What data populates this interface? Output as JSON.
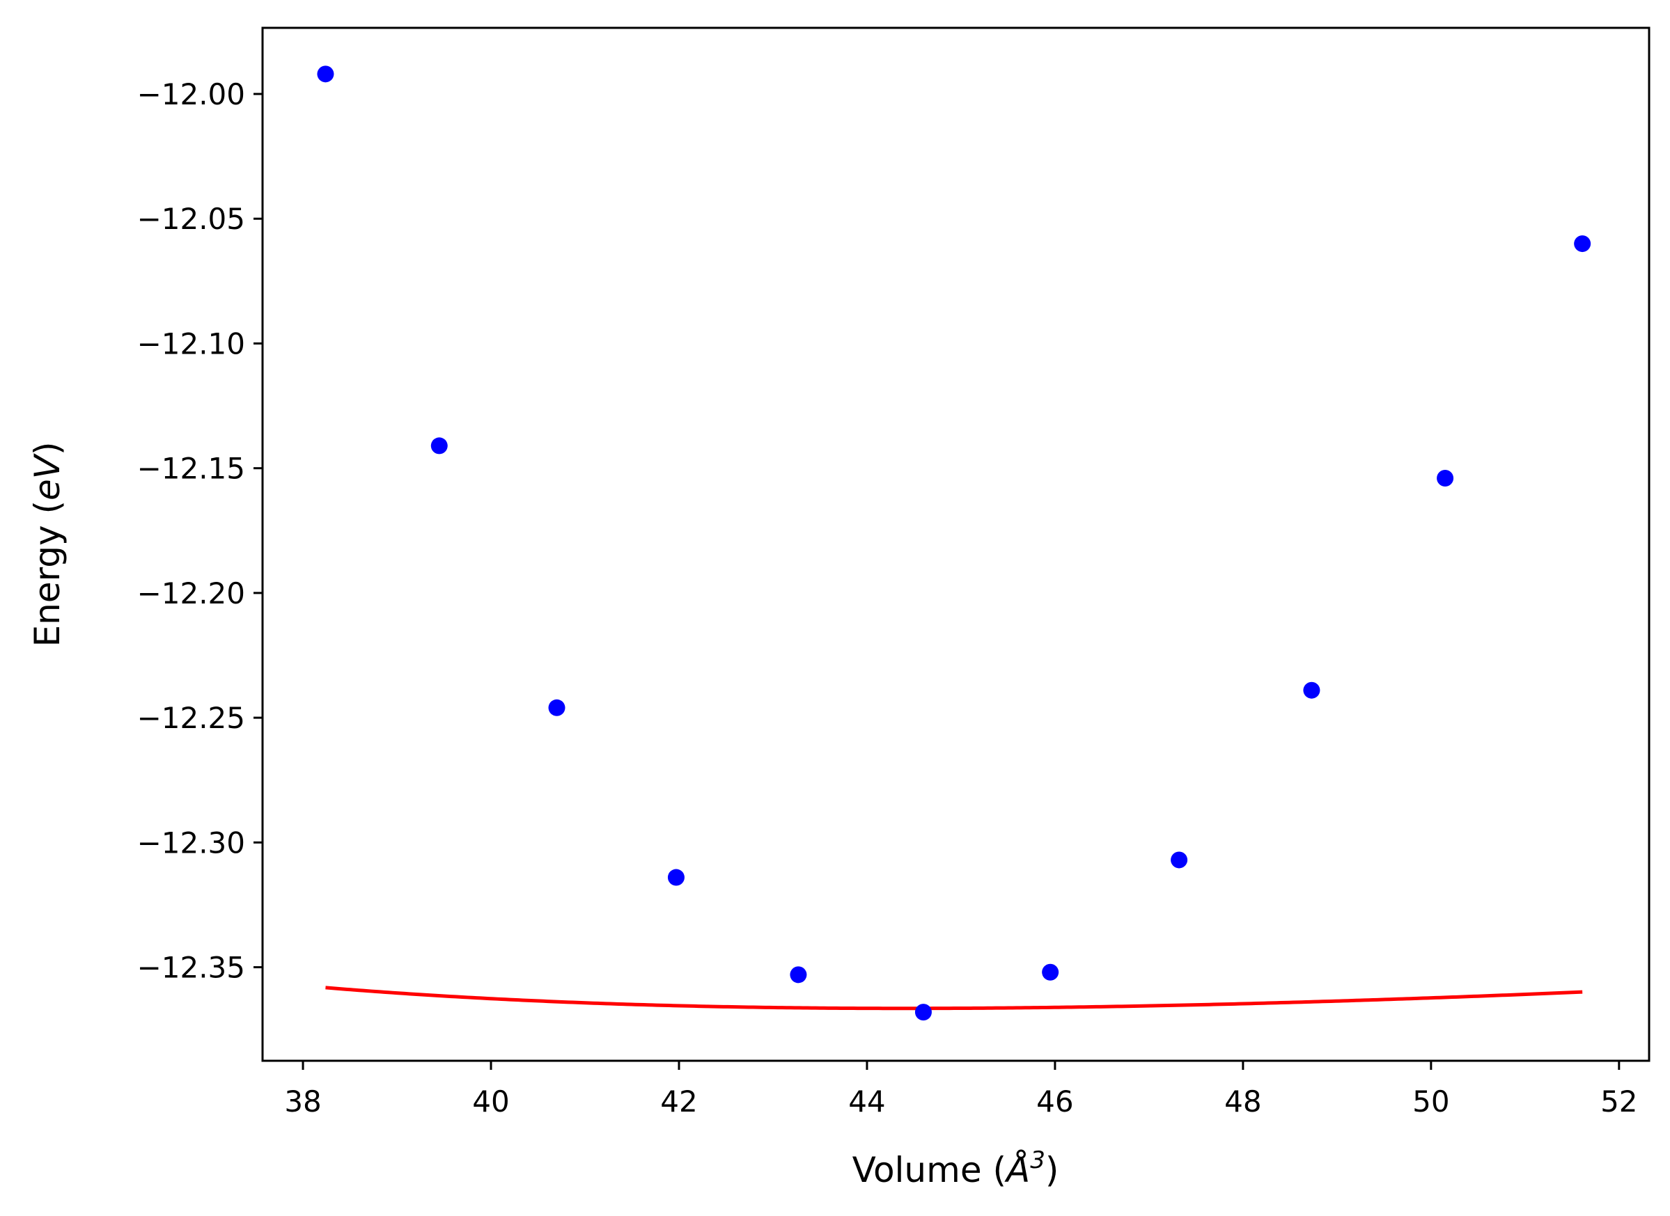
{
  "chart_data": {
    "type": "scatter",
    "title": "",
    "xlabel": {
      "prefix": "Volume (",
      "symbol": "Å",
      "superscript": "3",
      "suffix": ")"
    },
    "ylabel": {
      "prefix": "Energy (",
      "symbol": "eV",
      "suffix": ")"
    },
    "xlim": [
      37.57,
      52.32
    ],
    "ylim": [
      -12.3875,
      -11.9735
    ],
    "xticks": [
      38,
      40,
      42,
      44,
      46,
      48,
      50,
      52
    ],
    "xtick_labels": [
      "38",
      "40",
      "42",
      "44",
      "46",
      "48",
      "50",
      "52"
    ],
    "yticks": [
      -12.0,
      -12.05,
      -12.1,
      -12.15,
      -12.2,
      -12.25,
      -12.3,
      -12.35
    ],
    "ytick_labels": [
      "−12.00",
      "−12.05",
      "−12.10",
      "−12.15",
      "−12.20",
      "−12.25",
      "−12.30",
      "−12.35"
    ],
    "grid": false,
    "series": [
      {
        "kind": "scatter",
        "color": "#0000ff",
        "x": [
          38.24,
          39.45,
          40.7,
          41.97,
          43.27,
          44.6,
          45.95,
          47.32,
          48.73,
          50.15,
          51.61
        ],
        "y": [
          -11.992,
          -12.141,
          -12.246,
          -12.314,
          -12.353,
          -12.368,
          -12.352,
          -12.307,
          -12.239,
          -12.154,
          -12.06
        ]
      },
      {
        "kind": "line",
        "color": "#ff0000",
        "fit": "birch-murnaghan",
        "E0": -12.3665,
        "V0": 44.4,
        "B0": 0.0148,
        "Bp": 4.5,
        "x_range": [
          38.24,
          51.61
        ]
      }
    ]
  }
}
